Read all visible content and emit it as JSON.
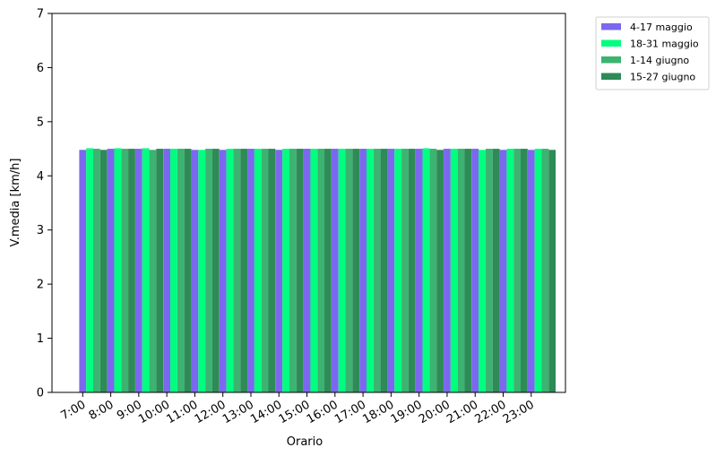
{
  "chart_data": {
    "type": "bar",
    "xlabel": "Orario",
    "ylabel": "V.media [km/h]",
    "ylim": [
      0,
      7
    ],
    "yticks": [
      0,
      1,
      2,
      3,
      4,
      5,
      6,
      7
    ],
    "grid": false,
    "legend_position": "outside-top-right",
    "categories": [
      "7:00",
      "8:00",
      "9:00",
      "10:00",
      "11:00",
      "12:00",
      "13:00",
      "14:00",
      "15:00",
      "16:00",
      "17:00",
      "18:00",
      "19:00",
      "20:00",
      "21:00",
      "22:00",
      "23:00"
    ],
    "series": [
      {
        "name": "4-17 maggio",
        "color": "#7B68EE",
        "values": [
          4.48,
          4.5,
          4.5,
          4.5,
          4.48,
          4.48,
          4.5,
          4.48,
          4.5,
          4.5,
          4.5,
          4.5,
          4.5,
          4.5,
          4.5,
          4.48,
          4.48
        ]
      },
      {
        "name": "18-31 maggio",
        "color": "#00FF7F",
        "values": [
          4.51,
          4.51,
          4.51,
          4.5,
          4.48,
          4.5,
          4.5,
          4.5,
          4.5,
          4.5,
          4.5,
          4.5,
          4.51,
          4.5,
          4.48,
          4.5,
          4.5
        ]
      },
      {
        "name": "1-14 giugno",
        "color": "#3CB371",
        "values": [
          4.5,
          4.5,
          4.48,
          4.5,
          4.5,
          4.5,
          4.5,
          4.5,
          4.5,
          4.5,
          4.5,
          4.5,
          4.5,
          4.5,
          4.5,
          4.5,
          4.5
        ]
      },
      {
        "name": "15-27 giugno",
        "color": "#2E8B57",
        "values": [
          4.48,
          4.5,
          4.5,
          4.5,
          4.5,
          4.5,
          4.5,
          4.5,
          4.5,
          4.5,
          4.5,
          4.5,
          4.48,
          4.5,
          4.5,
          4.5,
          4.48
        ]
      }
    ]
  }
}
